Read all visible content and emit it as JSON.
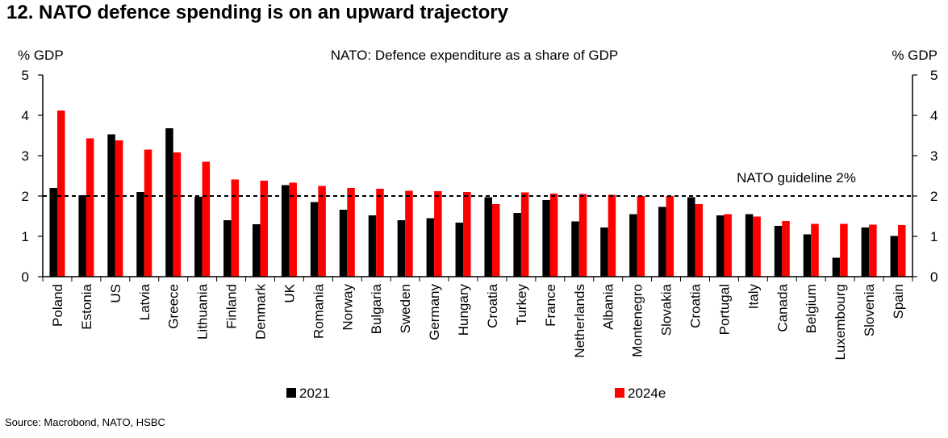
{
  "heading": "12. NATO defence spending is on an upward trajectory",
  "source": "Source: Macrobond, NATO, HSBC",
  "chart_data": {
    "type": "bar",
    "title": "NATO: Defence expenditure as a share of GDP",
    "ylabel_left": "% GDP",
    "ylabel_right": "% GDP",
    "ylim": [
      0,
      5
    ],
    "yticks": [
      0,
      1,
      2,
      3,
      4,
      5
    ],
    "grid": false,
    "legend_position": "bottom",
    "categories": [
      "Poland",
      "Estonia",
      "US",
      "Latvia",
      "Greece",
      "Lithuania",
      "Finland",
      "Denmark",
      "UK",
      "Romania",
      "Norway",
      "Bulgaria",
      "Sweden",
      "Germany",
      "Hungary",
      "Croatia",
      "Turkey",
      "France",
      "Netherlands",
      "Albania",
      "Montenegro",
      "Slovakia",
      "Croatia",
      "Portugal",
      "Italy",
      "Canada",
      "Belgium",
      "Luxembourg",
      "Slovenia",
      "Spain"
    ],
    "series": [
      {
        "name": "2021",
        "color": "#000000",
        "values": [
          2.2,
          2.02,
          3.53,
          2.1,
          3.68,
          1.98,
          1.4,
          1.3,
          2.27,
          1.85,
          1.66,
          1.52,
          1.4,
          1.45,
          1.34,
          1.97,
          1.58,
          1.9,
          1.37,
          1.22,
          1.55,
          1.73,
          1.97,
          1.52,
          1.55,
          1.26,
          1.05,
          0.47,
          1.22,
          1.01
        ]
      },
      {
        "name": "2024e",
        "color": "#ff0000",
        "values": [
          4.12,
          3.43,
          3.38,
          3.15,
          3.08,
          2.85,
          2.41,
          2.38,
          2.33,
          2.25,
          2.2,
          2.18,
          2.13,
          2.12,
          2.1,
          1.8,
          2.09,
          2.06,
          2.05,
          2.03,
          2.0,
          2.0,
          1.8,
          1.55,
          1.49,
          1.38,
          1.31,
          1.31,
          1.29,
          1.28
        ]
      }
    ],
    "reference_line": {
      "value": 2,
      "label": "NATO guideline  2%"
    }
  }
}
